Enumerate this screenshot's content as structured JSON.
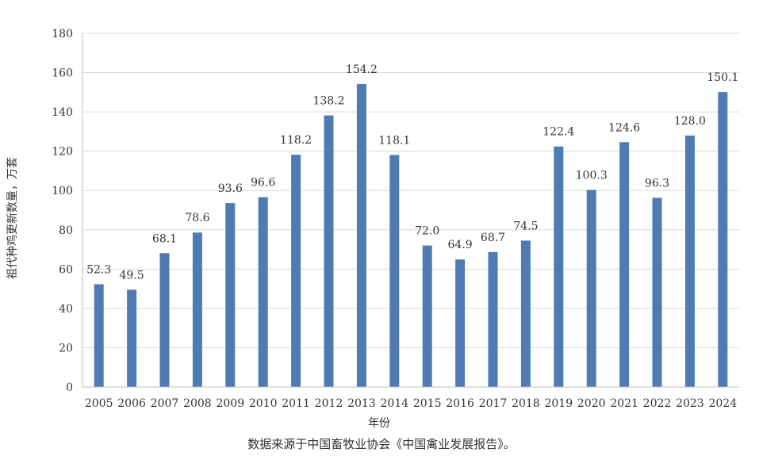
{
  "chart_data": {
    "type": "bar",
    "categories": [
      "2005",
      "2006",
      "2007",
      "2008",
      "2009",
      "2010",
      "2011",
      "2012",
      "2013",
      "2014",
      "2015",
      "2016",
      "2017",
      "2018",
      "2019",
      "2020",
      "2021",
      "2022",
      "2023",
      "2024"
    ],
    "values": [
      52.3,
      49.5,
      68.1,
      78.6,
      93.6,
      96.6,
      118.2,
      138.2,
      154.2,
      118.1,
      72.0,
      64.9,
      68.7,
      74.5,
      122.4,
      100.3,
      124.6,
      96.3,
      128.0,
      150.1
    ],
    "value_labels": [
      "52.3",
      "49.5",
      "68.1",
      "78.6",
      "93.6",
      "96.6",
      "118.2",
      "138.2",
      "154.2",
      "118.1",
      "72.0",
      "64.9",
      "68.7",
      "74.5",
      "122.4",
      "100.3",
      "124.6",
      "96.3",
      "128.0",
      "150.1"
    ],
    "xlabel": "年份",
    "ylabel": "祖代种鸡更新数量，万套",
    "ylim": [
      0,
      180
    ],
    "yticks": [
      0,
      20,
      40,
      60,
      80,
      100,
      120,
      140,
      160,
      180
    ],
    "grid": true,
    "legend": "none",
    "bar_color": "#4f7bb3",
    "grid_color": "#d9d9d9",
    "axis_color": "#bfbfbf"
  },
  "source_note": "数据来源于中国畜牧业协会《中国禽业发展报告》。"
}
